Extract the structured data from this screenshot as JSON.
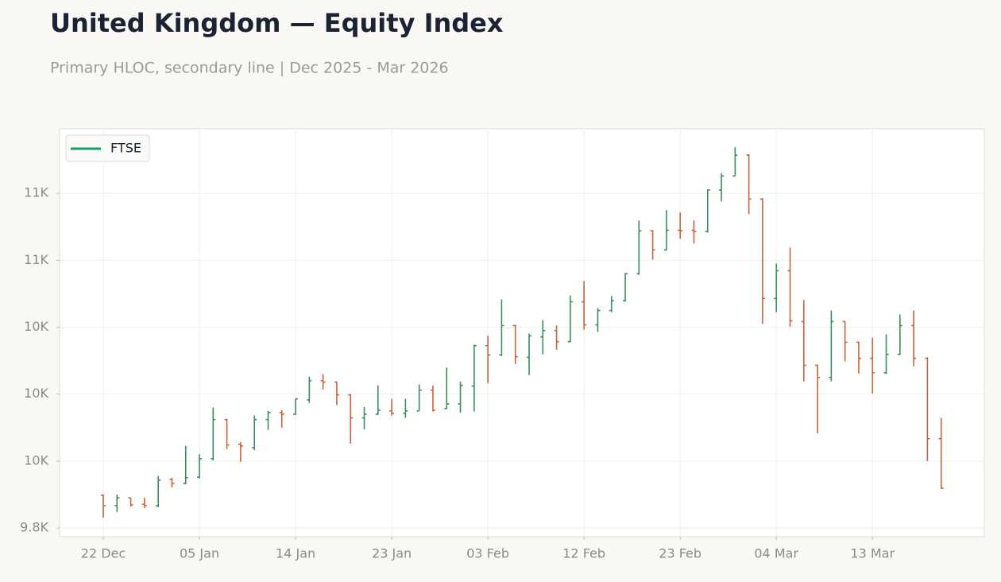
{
  "chart_data": {
    "type": "ohlc",
    "title": "United Kingdom — Equity Index",
    "subtitle": "Primary HLOC, secondary line | Dec 2025 - Mar 2026",
    "categories": [
      "22 Dec",
      null,
      null,
      null,
      null,
      null,
      null,
      "05 Jan",
      null,
      null,
      null,
      null,
      null,
      null,
      "14 Jan",
      null,
      null,
      null,
      null,
      null,
      null,
      "23 Jan",
      null,
      null,
      null,
      null,
      null,
      null,
      "03 Feb",
      null,
      null,
      null,
      null,
      null,
      null,
      "12 Feb",
      null,
      null,
      null,
      null,
      null,
      null,
      "23 Feb",
      null,
      null,
      null,
      null,
      null,
      null,
      "04 Mar",
      null,
      null,
      null,
      null,
      null,
      null,
      "13 Mar",
      null,
      null,
      null,
      null,
      null
    ],
    "series": [
      {
        "name": "FTSE",
        "color": "#1a9a6a",
        "up_color": "#3a8f5c",
        "down_color": "#c8623f",
        "open": [
          9898,
          9867,
          9890,
          9871,
          9867,
          9945,
          9933,
          9952,
          10007,
          10124,
          10050,
          10040,
          10124,
          10145,
          10140,
          10183,
          10240,
          10236,
          10198,
          10129,
          10140,
          10150,
          10143,
          10150,
          10212,
          10157,
          10171,
          10224,
          10345,
          10317,
          10405,
          10310,
          10371,
          10390,
          10357,
          10476,
          10407,
          10450,
          10479,
          10560,
          10688,
          10631,
          10690,
          10690,
          10686,
          10810,
          10852,
          10914,
          10783,
          10486,
          10569,
          10417,
          10286,
          10250,
          10417,
          10355,
          10307,
          10264,
          10319,
          10405,
          10307,
          10067
        ],
        "high": [
          9900,
          9900,
          9890,
          9890,
          9955,
          9950,
          10045,
          10021,
          10160,
          10126,
          10057,
          10136,
          10150,
          10152,
          10186,
          10252,
          10260,
          10238,
          10200,
          10162,
          10226,
          10186,
          10186,
          10229,
          10226,
          10279,
          10238,
          10348,
          10374,
          10483,
          10407,
          10381,
          10421,
          10405,
          10495,
          10538,
          10457,
          10493,
          10562,
          10719,
          10690,
          10750,
          10743,
          10719,
          10812,
          10860,
          10938,
          10917,
          10786,
          10590,
          10638,
          10481,
          10288,
          10450,
          10417,
          10357,
          10369,
          10379,
          10438,
          10450,
          10310,
          10129
        ],
        "low": [
          9831,
          9848,
          9864,
          9860,
          9862,
          9921,
          9931,
          9948,
          10002,
          10036,
          9998,
          10033,
          10093,
          10100,
          10138,
          10174,
          10214,
          10167,
          10052,
          10095,
          10138,
          10136,
          10129,
          10150,
          10148,
          10155,
          10145,
          10148,
          10233,
          10314,
          10290,
          10257,
          10319,
          10333,
          10355,
          10393,
          10386,
          10445,
          10476,
          10557,
          10602,
          10629,
          10664,
          10650,
          10683,
          10776,
          10852,
          10738,
          10410,
          10445,
          10402,
          10238,
          10083,
          10238,
          10298,
          10262,
          10202,
          10260,
          10317,
          10283,
          10000,
          9917
        ],
        "close": [
          9867,
          9890,
          9869,
          9867,
          9943,
          9933,
          9950,
          10007,
          10124,
          10048,
          10045,
          10124,
          10145,
          10140,
          10186,
          10240,
          10236,
          10198,
          10129,
          10140,
          10152,
          10143,
          10150,
          10212,
          10152,
          10171,
          10226,
          10345,
          10317,
          10405,
          10312,
          10374,
          10390,
          10357,
          10476,
          10407,
          10450,
          10479,
          10560,
          10688,
          10631,
          10690,
          10688,
          10686,
          10810,
          10852,
          10914,
          10783,
          10486,
          10569,
          10419,
          10286,
          10250,
          10417,
          10355,
          10307,
          10264,
          10319,
          10405,
          10307,
          10067,
          9919
        ]
      }
    ],
    "ylim": [
      9774,
      10993
    ],
    "yticks": [
      {
        "value": 9800,
        "label": "9.8K"
      },
      {
        "value": 10000,
        "label": "10K"
      },
      {
        "value": 10200,
        "label": "10K"
      },
      {
        "value": 10400,
        "label": "10K"
      },
      {
        "value": 10600,
        "label": "11K"
      },
      {
        "value": 10800,
        "label": "11K"
      }
    ],
    "grid": true,
    "legend": "upper left"
  }
}
